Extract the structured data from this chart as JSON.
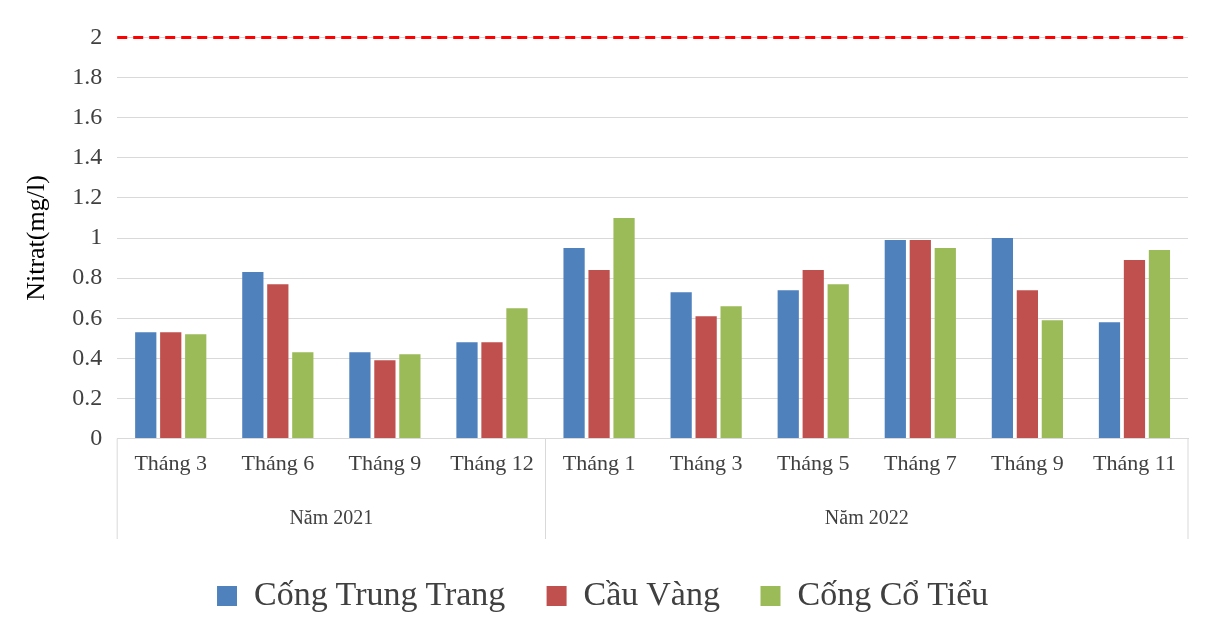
{
  "chart_data": {
    "type": "bar",
    "ylabel": "Nitrat(mg/l)",
    "categories": [
      "Tháng 3",
      "Tháng 6",
      "Tháng 9",
      "Tháng 12",
      "Tháng 1",
      "Tháng 3",
      "Tháng 5",
      "Tháng 7",
      "Tháng 9",
      "Tháng 11"
    ],
    "series": [
      {
        "name": "Cống Trung Trang",
        "color": "#4f81bd",
        "values": [
          0.53,
          0.83,
          0.43,
          0.48,
          0.95,
          0.73,
          0.74,
          0.99,
          1.0,
          0.58
        ]
      },
      {
        "name": "Cầu Vàng",
        "color": "#c0504d",
        "values": [
          0.53,
          0.77,
          0.39,
          0.48,
          0.84,
          0.61,
          0.84,
          0.99,
          0.74,
          0.89
        ]
      },
      {
        "name": "Cống Cổ Tiểu",
        "color": "#9bbb59",
        "values": [
          0.52,
          0.43,
          0.42,
          0.65,
          1.1,
          0.66,
          0.77,
          0.95,
          0.59,
          0.94
        ]
      }
    ],
    "ylim": [
      0,
      2
    ],
    "yticks": [
      0,
      0.2,
      0.4,
      0.6,
      0.8,
      1,
      1.2,
      1.4,
      1.6,
      1.8,
      2
    ],
    "annotations": [
      "Năm 2021",
      "Năm 2022"
    ],
    "ref_lines": [
      {
        "axis": "y",
        "value": 2,
        "color": "#ff0000",
        "line_style": "dashed"
      }
    ],
    "grid": "y",
    "legend": "bottom"
  }
}
